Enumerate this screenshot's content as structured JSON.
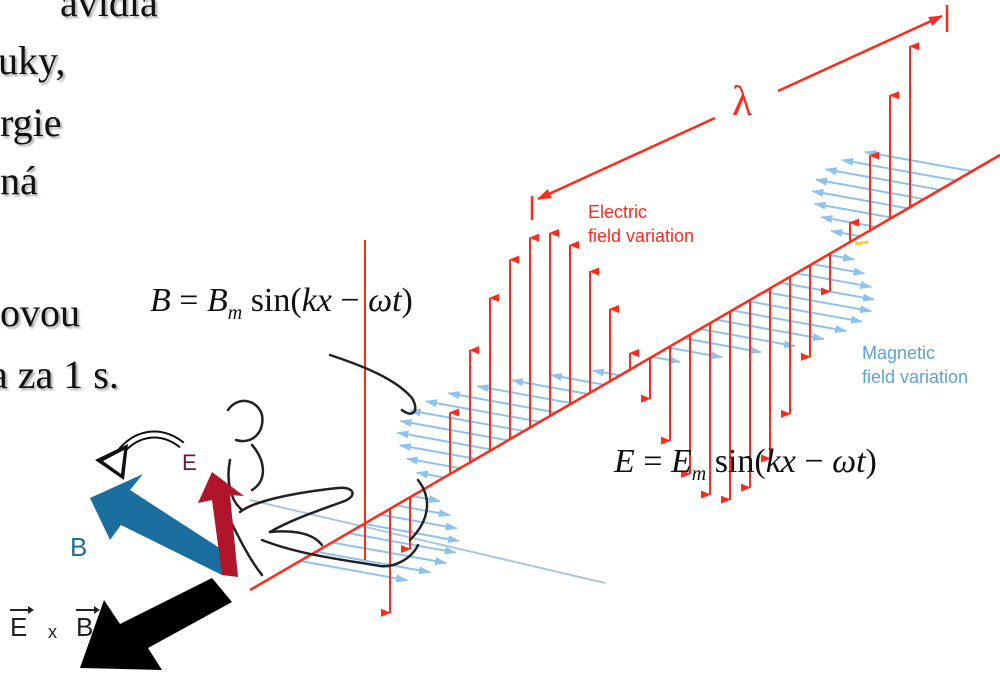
{
  "slide_text": {
    "line1": "avidla",
    "line2": "uky,",
    "line3": "rgie",
    "line4": "ná",
    "line5": "ovou",
    "line6": "a za 1 s."
  },
  "labels": {
    "lambda": "λ",
    "electric_1": "Electric",
    "electric_2": "field variation",
    "magnetic_1": "Magnetic",
    "magnetic_2": "field variation",
    "hand_E": "E",
    "hand_B": "B",
    "cross_E": "E",
    "cross_x": "x",
    "cross_B": "B"
  },
  "equations": {
    "b_eq": {
      "lhs": "B",
      "eq": "=",
      "amp": "B",
      "sub": "m",
      "fn": "sin(",
      "arg": "kx",
      "op": " − ",
      "w": "ωt",
      "close": ")"
    },
    "e_eq": {
      "lhs": "E",
      "eq": "=",
      "amp": "E",
      "sub": "m",
      "fn": "sin(",
      "arg": "kx",
      "op": " − ",
      "w": "ωt",
      "close": ")"
    }
  },
  "colors": {
    "electric": "#ff2a1a",
    "magnetic": "#8ec3ec",
    "hand_E_arrow": "#b0152c",
    "hand_B_arrow": "#1b6f9e",
    "cross_arrow": "#000000"
  }
}
